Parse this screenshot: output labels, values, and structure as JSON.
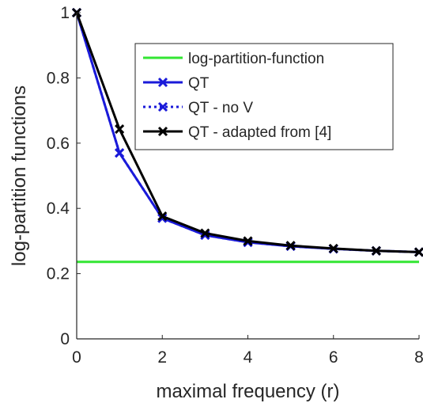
{
  "chart_data": {
    "type": "line",
    "xlabel": "maximal frequency (r)",
    "ylabel": "log-partition functions",
    "xlim": [
      0,
      8
    ],
    "ylim": [
      0,
      1
    ],
    "x_ticks": [
      0,
      2,
      4,
      6,
      8
    ],
    "y_ticks": [
      0,
      0.2,
      0.4,
      0.6,
      0.8,
      1
    ],
    "x_tick_labels": [
      "0",
      "2",
      "4",
      "6",
      "8"
    ],
    "y_tick_labels": [
      "0",
      "0.2",
      "0.4",
      "0.6",
      "0.8",
      "1"
    ],
    "grid": false,
    "legend_position": "top-right",
    "series": [
      {
        "name": "log-partition-function",
        "color": "#33e633",
        "line_style": "solid",
        "marker": "none",
        "x": [
          0,
          8
        ],
        "y": [
          0.236,
          0.236
        ]
      },
      {
        "name": "QT",
        "color": "#1a1ad9",
        "line_style": "solid",
        "marker": "x",
        "x": [
          0,
          1,
          2,
          3,
          4,
          5,
          6,
          7,
          8
        ],
        "y": [
          1.0,
          0.57,
          0.37,
          0.318,
          0.296,
          0.284,
          0.276,
          0.27,
          0.266
        ]
      },
      {
        "name": "QT - no V",
        "color": "#1a1ad9",
        "line_style": "dotted",
        "marker": "x",
        "x": [
          0,
          1,
          2,
          3,
          4,
          5,
          6,
          7,
          8
        ],
        "y": [
          1.0,
          0.57,
          0.37,
          0.318,
          0.296,
          0.284,
          0.276,
          0.27,
          0.266
        ]
      },
      {
        "name": "QT - adapted from [4]",
        "color": "#000000",
        "line_style": "solid",
        "marker": "x",
        "x": [
          0,
          1,
          2,
          3,
          4,
          5,
          6,
          7,
          8
        ],
        "y": [
          1.0,
          0.643,
          0.376,
          0.324,
          0.3,
          0.286,
          0.277,
          0.27,
          0.266
        ]
      }
    ]
  }
}
